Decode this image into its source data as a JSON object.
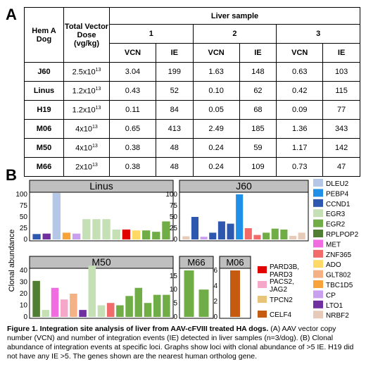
{
  "panel_a": {
    "letter": "A",
    "headers": {
      "dog": "Hem A Dog",
      "dose": "Total Vector Dose (vg/kg)",
      "liver": "Liver sample",
      "samples": [
        "1",
        "2",
        "3"
      ],
      "vcn": "VCN",
      "ie": "IE"
    },
    "rows": [
      {
        "dog": "J60",
        "dose_base": "2.5x10",
        "dose_exp": "13",
        "values": [
          "3.04",
          "199",
          "1.63",
          "148",
          "0.63",
          "103"
        ]
      },
      {
        "dog": "Linus",
        "dose_base": "1.2x10",
        "dose_exp": "13",
        "values": [
          "0.43",
          "52",
          "0.10",
          "62",
          "0.42",
          "115"
        ]
      },
      {
        "dog": "H19",
        "dose_base": "1.2x10",
        "dose_exp": "13",
        "values": [
          "0.11",
          "84",
          "0.05",
          "68",
          "0.09",
          "77"
        ]
      },
      {
        "dog": "M06",
        "dose_base": "4x10",
        "dose_exp": "13",
        "values": [
          "0.65",
          "413",
          "2.49",
          "185",
          "1.36",
          "343"
        ]
      },
      {
        "dog": "M50",
        "dose_base": "4x10",
        "dose_exp": "13",
        "values": [
          "0.38",
          "48",
          "0.24",
          "59",
          "1.17",
          "142"
        ]
      },
      {
        "dog": "M66",
        "dose_base": "2x10",
        "dose_exp": "13",
        "values": [
          "0.38",
          "48",
          "0.24",
          "109",
          "0.73",
          "47"
        ]
      }
    ]
  },
  "panel_b": {
    "letter": "B",
    "ylabel": "Clonal abundance",
    "legend_top": [
      {
        "label": "DLEU2",
        "color": "#b4c7e7"
      },
      {
        "label": "PEBP4",
        "color": "#1f8fe8"
      },
      {
        "label": "CCND1",
        "color": "#2e57b0"
      },
      {
        "label": "EGR3",
        "color": "#c5e0b4"
      },
      {
        "label": "EGR2",
        "color": "#70ad47"
      },
      {
        "label": "RPLPOP2",
        "color": "#507e32"
      },
      {
        "label": "MET",
        "color": "#f06ce0"
      },
      {
        "label": "ZNF365",
        "color": "#f26b6b"
      },
      {
        "label": "ADO",
        "color": "#ffd966"
      },
      {
        "label": "GLT802",
        "color": "#f4b183"
      },
      {
        "label": "TBC1D5",
        "color": "#f7a23a"
      },
      {
        "label": "CP",
        "color": "#c9a0f0"
      },
      {
        "label": "LTO1",
        "color": "#7030a0"
      },
      {
        "label": "NRBF2",
        "color": "#e6cbb8"
      }
    ],
    "legend_mid": [
      {
        "label": "PARD3B, PARD3",
        "color": "#e00000"
      },
      {
        "label": "PACS2, JAG2",
        "color": "#f4a7c8"
      },
      {
        "label": "TPCN2",
        "color": "#e8c47a"
      },
      {
        "label": "CELF4",
        "color": "#c55a11"
      }
    ]
  },
  "chart_data": [
    {
      "type": "bar",
      "title": "Linus",
      "ylim": [
        0,
        100
      ],
      "yticks": [
        0,
        25,
        50,
        75,
        100
      ],
      "values": [
        12,
        13,
        103,
        15,
        13,
        45,
        45,
        45,
        22,
        22,
        20,
        20,
        17,
        40
      ],
      "colors": [
        "#2e57b0",
        "#7030a0",
        "#b4c7e7",
        "#f7a23a",
        "#c9a0f0",
        "#c5e0b4",
        "#c5e0b4",
        "#c5e0b4",
        "#c5e0b4",
        "#e00000",
        "#ffd966",
        "#70ad47",
        "#70ad47",
        "#70ad47"
      ]
    },
    {
      "type": "bar",
      "title": "J60",
      "ylim": [
        0,
        100
      ],
      "yticks": [
        0,
        25,
        50,
        75,
        100
      ],
      "values": [
        7,
        50,
        6,
        15,
        40,
        35,
        100,
        25,
        10,
        15,
        24,
        22,
        8,
        15
      ],
      "colors": [
        "#e6cbb8",
        "#2e57b0",
        "#c9a0f0",
        "#2e57b0",
        "#2e57b0",
        "#2e57b0",
        "#1f8fe8",
        "#f26b6b",
        "#f26b6b",
        "#70ad47",
        "#70ad47",
        "#70ad47",
        "#e6cbb8",
        "#e6cbb8"
      ]
    },
    {
      "type": "bar",
      "title": "M50",
      "ylim": [
        0,
        40
      ],
      "yticks": [
        0,
        10,
        20,
        30,
        40
      ],
      "values": [
        31,
        6,
        25,
        15,
        20,
        6,
        44,
        10,
        12,
        10,
        18,
        25,
        12,
        19,
        19
      ],
      "colors": [
        "#507e32",
        "#c5e0b4",
        "#f06ce0",
        "#f4a7c8",
        "#f4b183",
        "#7030a0",
        "#c5e0b4",
        "#c5e0b4",
        "#f26b6b",
        "#70ad47",
        "#70ad47",
        "#70ad47",
        "#70ad47",
        "#70ad47",
        "#70ad47"
      ]
    },
    {
      "type": "bar",
      "title": "M66",
      "ylim": [
        0,
        17
      ],
      "yticks": [
        0,
        5,
        10,
        15
      ],
      "values": [
        17,
        10
      ],
      "colors": [
        "#70ad47",
        "#70ad47"
      ]
    },
    {
      "type": "bar",
      "title": "M06",
      "ylim": [
        0,
        6
      ],
      "yticks": [
        0,
        2,
        4,
        6
      ],
      "values": [
        6
      ],
      "colors": [
        "#c55a11"
      ]
    }
  ],
  "caption": {
    "bold": "Figure 1.  Integration site analysis of liver from AAV-cFVIII treated HA dogs.",
    "text": " (A) AAV vector copy number (VCN) and number of integration events (IE) detected in liver samples (n=3/dog).  (B) Clonal abundance of integration events at specific loci.  Graphs show loci with clonal abundance of >5 IE.  H19 did not have any IE >5.  The genes shown are the nearest human ortholog gene."
  }
}
